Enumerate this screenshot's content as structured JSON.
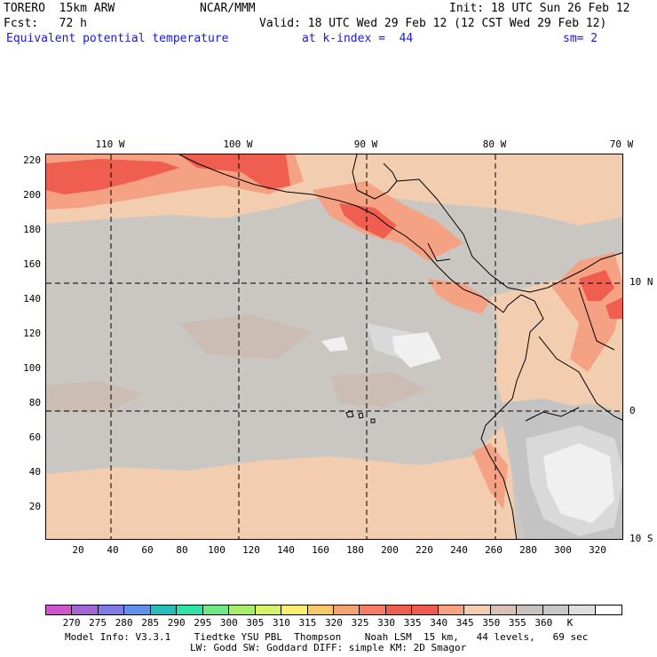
{
  "header": {
    "model": "TORERO  15km ARW",
    "center": "NCAR/MMM",
    "init": "Init: 18 UTC Sun 26 Feb 12",
    "fcst": "Fcst:   72 h",
    "valid": "Valid: 18 UTC Wed 29 Feb 12 (12 CST Wed 29 Feb 12)",
    "field": "Equivalent potential temperature",
    "level": "at k-index =  44",
    "smooth": "sm= 2"
  },
  "map": {
    "lon_labels": [
      "110 W",
      "100 W",
      "90 W",
      "80 W",
      "70 W"
    ],
    "lat_labels": [
      "10 N",
      "0",
      "10 S"
    ],
    "y_ticks": [
      "220",
      "200",
      "180",
      "160",
      "140",
      "120",
      "100",
      "80",
      "60",
      "40",
      "20"
    ],
    "x_ticks": [
      "20",
      "40",
      "60",
      "80",
      "100",
      "120",
      "140",
      "160",
      "180",
      "200",
      "220",
      "240",
      "260",
      "280",
      "300",
      "320"
    ],
    "colors": {
      "base": "#cac6c2",
      "warm_tan": "#f2cdb0",
      "salmon": "#f5a184",
      "red": "#ef5e4e",
      "gray_mid": "#c3c3c3",
      "gray_light": "#d9d9d9",
      "near_white": "#f0f0f0",
      "brown_gray": "#cbbdb3"
    }
  },
  "colorbar": {
    "colors": [
      "#d254cc",
      "#a466d6",
      "#7e7ae8",
      "#5f90ea",
      "#27bdb8",
      "#2fe3a8",
      "#6fe88a",
      "#a8ee6b",
      "#d8f266",
      "#fcee6c",
      "#f8c866",
      "#f5a471",
      "#f37c62",
      "#ef5e4e",
      "#f05a50",
      "#f6a084",
      "#f2cdb0",
      "#d9c2b5",
      "#c8c3c0",
      "#c8c8c8",
      "#dedede",
      "#ffffff"
    ],
    "labels": [
      "270",
      "275",
      "280",
      "285",
      "290",
      "295",
      "300",
      "305",
      "310",
      "315",
      "320",
      "325",
      "330",
      "335",
      "340",
      "345",
      "350",
      "355",
      "360",
      "K"
    ]
  },
  "footer": {
    "line1": "Model Info: V3.3.1    Tiedtke YSU PBL  Thompson    Noah LSM  15 km,   44 levels,   69 sec",
    "line2": "LW: Godd SW: Goddard DIFF: simple KM: 2D Smagor"
  }
}
